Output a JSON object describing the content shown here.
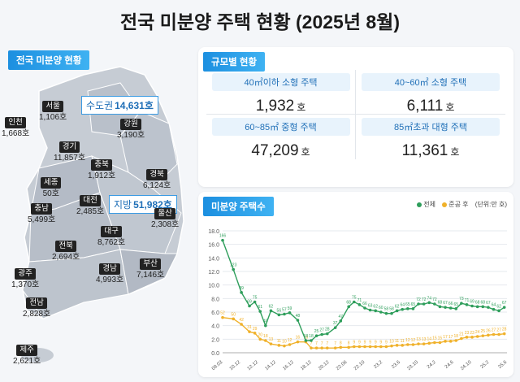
{
  "title": "전국 미분양 주택 현황  (2025년 8월)",
  "map_section": {
    "label": "전국 미분양 현황",
    "capital": {
      "name": "수도권",
      "value": "14,631호"
    },
    "provincial": {
      "name": "지방",
      "value": "51,982호"
    },
    "regions": [
      {
        "key": "seoul",
        "name": "서울",
        "value": "1,106호"
      },
      {
        "key": "incheon",
        "name": "인천",
        "value": "1,668호"
      },
      {
        "key": "gyeonggi",
        "name": "경기",
        "value": "11,857호"
      },
      {
        "key": "gangwon",
        "name": "강원",
        "value": "3,190호"
      },
      {
        "key": "chungbuk",
        "name": "충북",
        "value": "1,912호"
      },
      {
        "key": "sejong",
        "name": "세종",
        "value": "50호"
      },
      {
        "key": "gyeongbuk",
        "name": "경북",
        "value": "6,124호"
      },
      {
        "key": "daejeon",
        "name": "대전",
        "value": "2,485호"
      },
      {
        "key": "chungnam",
        "name": "충남",
        "value": "5,499호"
      },
      {
        "key": "daegu",
        "name": "대구",
        "value": "8,762호"
      },
      {
        "key": "ulsan",
        "name": "울산",
        "value": "2,308호"
      },
      {
        "key": "jeonbuk",
        "name": "전북",
        "value": "2,694호"
      },
      {
        "key": "gyeongnam",
        "name": "경남",
        "value": "4,993호"
      },
      {
        "key": "busan",
        "name": "부산",
        "value": "7,146호"
      },
      {
        "key": "gwangju",
        "name": "광주",
        "value": "1,370호"
      },
      {
        "key": "jeonnam",
        "name": "전남",
        "value": "2,828호"
      },
      {
        "key": "jeju",
        "name": "제주",
        "value": "2,621호"
      }
    ]
  },
  "size_section": {
    "label": "규모별 현황",
    "unit": "호",
    "items": [
      {
        "label": "40㎡이하 소형 주택",
        "value": "1,932"
      },
      {
        "label": "40~60㎡ 소형 주택",
        "value": "6,111"
      },
      {
        "label": "60~85㎡ 중형 주택",
        "value": "47,209"
      },
      {
        "label": "85㎡초과 대형 주택",
        "value": "11,361"
      }
    ]
  },
  "chart_section": {
    "label": "미분양 주택수",
    "legend_total": "전체",
    "legend_completed": "준공 후",
    "legend_unit": "(단위:만 호)"
  },
  "colors": {
    "total": "#2e9e5b",
    "completed": "#f0b12a",
    "accent": "#1c8fe0"
  },
  "chart_data": {
    "type": "line",
    "ylim": [
      0,
      18
    ],
    "yticks": [
      0,
      2,
      4,
      6,
      8,
      10,
      12,
      14,
      16,
      18
    ],
    "x_tick_labels": [
      "09.03",
      "10.12",
      "12.12",
      "14.12",
      "16.12",
      "18.12",
      "20.12",
      "22.06",
      "22.10",
      "23.2",
      "23.6",
      "23.10",
      "24.2",
      "24.6",
      "24.10",
      "25.2",
      "25.6"
    ],
    "total_points": [
      [
        0,
        16.6
      ],
      [
        4,
        12.3
      ],
      [
        7,
        8.9
      ],
      [
        10,
        6.9
      ],
      [
        12,
        7.5
      ],
      [
        14,
        6.1
      ],
      [
        16,
        4.0
      ],
      [
        18,
        6.2
      ],
      [
        21,
        5.6
      ],
      [
        23,
        5.7
      ],
      [
        25,
        5.9
      ],
      [
        28,
        4.8
      ],
      [
        31,
        1.8
      ],
      [
        33,
        1.8
      ],
      [
        35,
        2.5
      ],
      [
        37,
        2.7
      ],
      [
        39,
        2.8
      ],
      [
        42,
        3.7
      ],
      [
        44,
        4.7
      ],
      [
        47,
        6.8
      ],
      [
        49,
        7.5
      ],
      [
        51,
        7.1
      ],
      [
        53,
        6.6
      ],
      [
        55,
        6.3
      ],
      [
        57,
        6.2
      ],
      [
        59,
        6.0
      ],
      [
        61,
        5.8
      ],
      [
        63,
        5.8
      ],
      [
        65,
        6.2
      ],
      [
        67,
        6.4
      ],
      [
        69,
        6.5
      ],
      [
        71,
        6.5
      ],
      [
        73,
        7.2
      ],
      [
        75,
        7.2
      ],
      [
        77,
        7.4
      ],
      [
        79,
        7.2
      ],
      [
        81,
        6.8
      ],
      [
        83,
        6.7
      ],
      [
        85,
        6.6
      ],
      [
        87,
        6.5
      ],
      [
        89,
        7.3
      ],
      [
        91,
        7.1
      ],
      [
        93,
        6.9
      ],
      [
        95,
        6.8
      ],
      [
        97,
        6.8
      ],
      [
        99,
        6.7
      ],
      [
        101,
        6.4
      ],
      [
        103,
        6.2
      ],
      [
        105,
        6.7
      ]
    ],
    "completed_points": [
      [
        0,
        5.2
      ],
      [
        4,
        5.0
      ],
      [
        7,
        4.2
      ],
      [
        10,
        3.1
      ],
      [
        12,
        2.9
      ],
      [
        14,
        2.0
      ],
      [
        16,
        1.8
      ],
      [
        18,
        1.3
      ],
      [
        21,
        1.1
      ],
      [
        23,
        1.0
      ],
      [
        25,
        1.2
      ],
      [
        28,
        1.6
      ],
      [
        31,
        1.6
      ],
      [
        33,
        0.7
      ],
      [
        35,
        0.7
      ],
      [
        37,
        0.7
      ],
      [
        39,
        0.7
      ],
      [
        42,
        0.7
      ],
      [
        44,
        0.8
      ],
      [
        47,
        0.8
      ],
      [
        49,
        0.9
      ],
      [
        51,
        0.9
      ],
      [
        53,
        0.9
      ],
      [
        55,
        0.9
      ],
      [
        57,
        0.9
      ],
      [
        59,
        0.9
      ],
      [
        61,
        0.9
      ],
      [
        63,
        1.0
      ],
      [
        65,
        1.1
      ],
      [
        67,
        1.1
      ],
      [
        69,
        1.2
      ],
      [
        71,
        1.2
      ],
      [
        73,
        1.3
      ],
      [
        75,
        1.3
      ],
      [
        77,
        1.4
      ],
      [
        79,
        1.5
      ],
      [
        81,
        1.5
      ],
      [
        83,
        1.7
      ],
      [
        85,
        1.7
      ],
      [
        87,
        1.8
      ],
      [
        89,
        2.1
      ],
      [
        91,
        2.3
      ],
      [
        93,
        2.3
      ],
      [
        95,
        2.4
      ],
      [
        97,
        2.5
      ],
      [
        99,
        2.6
      ],
      [
        101,
        2.7
      ],
      [
        103,
        2.7
      ],
      [
        105,
        2.8
      ]
    ],
    "x_max": 106
  }
}
